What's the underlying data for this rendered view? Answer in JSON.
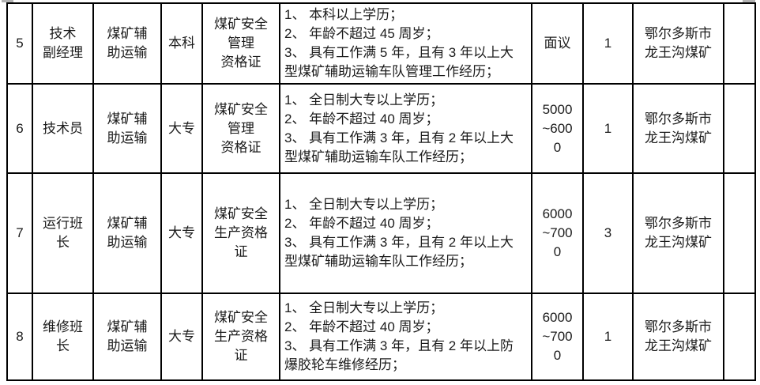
{
  "page": {
    "background_color": "#ffffff",
    "border_color": "#000000",
    "text_color": "#1b1b1b"
  },
  "table": {
    "description_visible_rows": "4",
    "rows": [
      {
        "no": "5",
        "position": [
          "技术",
          "副经理"
        ],
        "department": [
          "煤矿辅",
          "助运输"
        ],
        "education": "本科",
        "certificate": [
          "煤矿安全",
          "管理",
          "资格证"
        ],
        "requirements": [
          "1、 本科以上学历；",
          "2、 年龄不超过 45 周岁；",
          "3、 具有工作满 5 年，且有 3 年以上大",
          "型煤矿辅助运输车队管理工作经历；"
        ],
        "salary": [
          "面议"
        ],
        "headcount": "1",
        "location": [
          "鄂尔多斯市",
          "龙王沟煤矿"
        ],
        "note": ""
      },
      {
        "no": "6",
        "position": [
          "技术员"
        ],
        "department": [
          "煤矿辅",
          "助运输"
        ],
        "education": "大专",
        "certificate": [
          "煤矿安全",
          "管理",
          "资格证"
        ],
        "requirements": [
          "1、 全日制大专以上学历；",
          "2、 年龄不超过 40 周岁；",
          "3、 具有工作满 3 年，且有 2 年以上大",
          "型煤矿辅助运输车队工作经历；"
        ],
        "salary": [
          "5000",
          "~600",
          "0"
        ],
        "headcount": "1",
        "location": [
          "鄂尔多斯市",
          "龙王沟煤矿"
        ],
        "note": ""
      },
      {
        "no": "7",
        "position": [
          "运行班",
          "长"
        ],
        "department": [
          "煤矿辅",
          "助运输"
        ],
        "education": "大专",
        "certificate": [
          "煤矿安全",
          "生产资格",
          "证"
        ],
        "requirements": [
          "1、 全日制大专以上学历；",
          "2、 年龄不超过 40 周岁；",
          "3、 具有工作满 3 年，且有 2 年以上大",
          "型煤矿辅助运输车队工作经历；"
        ],
        "salary": [
          "6000",
          "~700",
          "0"
        ],
        "headcount": "3",
        "location": [
          "鄂尔多斯市",
          "龙王沟煤矿"
        ],
        "note": ""
      },
      {
        "no": "8",
        "position": [
          "维修班",
          "长"
        ],
        "department": [
          "煤矿辅",
          "助运输"
        ],
        "education": "大专",
        "certificate": [
          "煤矿安全",
          "生产资格",
          "证"
        ],
        "requirements": [
          "1、 全日制大专以上学历；",
          "2、 年龄不超过 40 周岁；",
          "3、 具有工作满 3 年，且有 2 年以上防",
          "爆胶轮车维修经历；"
        ],
        "salary": [
          "6000",
          "~700",
          "0"
        ],
        "headcount": "1",
        "location": [
          "鄂尔多斯市",
          "龙王沟煤矿"
        ],
        "note": ""
      }
    ]
  }
}
